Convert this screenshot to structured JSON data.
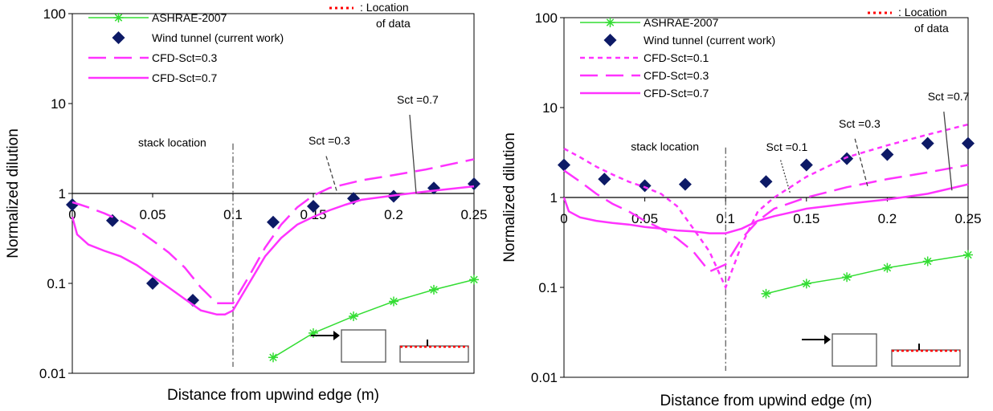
{
  "chart_data": [
    {
      "type": "line",
      "xlabel": "Distance from upwind edge (m)",
      "ylabel": "Normalized dilution",
      "xlim": [
        0,
        0.25
      ],
      "ylim": [
        0.01,
        100
      ],
      "yscale": "log",
      "xticks": [
        "0",
        "0.05",
        "0.1",
        "0.15",
        "0.2",
        "0.25"
      ],
      "yticks": [
        "0.01",
        "0.1",
        "1",
        "10",
        "100"
      ],
      "x_axis_crosses_at_y": 1,
      "stack_location": {
        "x": 0.1,
        "label": "stack location"
      },
      "legend": {
        "placement": "top",
        "entries": [
          {
            "label": "ASHRAE-2007",
            "style": "green-star-line"
          },
          {
            "label": "Wind tunnel (current work)",
            "style": "navy-diamond"
          },
          {
            "label": "CFD-Sct=0.3",
            "style": "magenta-long-dash"
          },
          {
            "label": "CFD-Sct=0.7",
            "style": "magenta-solid"
          }
        ],
        "location_note": ": Location of data"
      },
      "annotations": [
        {
          "text": "Sct =0.3",
          "x": 0.147,
          "y": 3.5
        },
        {
          "text": "Sct =0.7",
          "x": 0.202,
          "y": 10
        }
      ],
      "series": [
        {
          "name": "ASHRAE-2007",
          "color": "#33dd33",
          "marker": "star",
          "x": [
            0.125,
            0.15,
            0.175,
            0.2,
            0.225,
            0.25
          ],
          "y": [
            0.015,
            0.028,
            0.043,
            0.063,
            0.085,
            0.11
          ]
        },
        {
          "name": "Wind tunnel (current work)",
          "color": "#0d1a66",
          "marker": "diamond",
          "x": [
            0,
            0.025,
            0.05,
            0.075,
            0.125,
            0.15,
            0.175,
            0.2,
            0.225,
            0.25
          ],
          "y": [
            0.75,
            0.5,
            0.1,
            0.065,
            0.48,
            0.72,
            0.88,
            0.93,
            1.15,
            1.28
          ]
        },
        {
          "name": "CFD-Sct=0.3",
          "color": "#ff33ff",
          "dash": "long",
          "x": [
            0,
            0.005,
            0.01,
            0.02,
            0.03,
            0.04,
            0.05,
            0.06,
            0.07,
            0.08,
            0.09,
            0.1,
            0.11,
            0.12,
            0.13,
            0.14,
            0.15,
            0.16,
            0.18,
            0.2,
            0.22,
            0.25
          ],
          "y": [
            0.8,
            0.75,
            0.7,
            0.6,
            0.5,
            0.4,
            0.3,
            0.22,
            0.15,
            0.09,
            0.06,
            0.06,
            0.12,
            0.25,
            0.45,
            0.7,
            0.95,
            1.15,
            1.4,
            1.6,
            1.85,
            2.4
          ]
        },
        {
          "name": "CFD-Sct=0.7",
          "color": "#ff33ff",
          "dash": "solid",
          "x": [
            0,
            0.003,
            0.01,
            0.02,
            0.03,
            0.04,
            0.05,
            0.06,
            0.07,
            0.08,
            0.09,
            0.095,
            0.1,
            0.11,
            0.12,
            0.13,
            0.14,
            0.15,
            0.16,
            0.17,
            0.18,
            0.2,
            0.22,
            0.25
          ],
          "y": [
            0.55,
            0.35,
            0.27,
            0.23,
            0.2,
            0.16,
            0.12,
            0.09,
            0.067,
            0.05,
            0.045,
            0.045,
            0.05,
            0.1,
            0.2,
            0.32,
            0.45,
            0.55,
            0.65,
            0.75,
            0.85,
            0.95,
            1.05,
            1.2
          ]
        }
      ]
    },
    {
      "type": "line",
      "xlabel": "Distance from upwind edge (m)",
      "ylabel": "Normalized dilution",
      "xlim": [
        0,
        0.25
      ],
      "ylim": [
        0.01,
        100
      ],
      "yscale": "log",
      "xticks": [
        "0",
        "0.05",
        "0.1",
        "0.15",
        "0.2",
        "0.25"
      ],
      "yticks": [
        "0.01",
        "0.1",
        "1",
        "10",
        "100"
      ],
      "x_axis_crosses_at_y": 1,
      "stack_location": {
        "x": 0.1,
        "label": "stack location"
      },
      "legend": {
        "placement": "top",
        "entries": [
          {
            "label": "ASHRAE-2007",
            "style": "green-star-line"
          },
          {
            "label": "Wind tunnel (current work)",
            "style": "navy-diamond"
          },
          {
            "label": "CFD-Sct=0.1",
            "style": "magenta-short-dash"
          },
          {
            "label": "CFD-Sct=0.3",
            "style": "magenta-long-dash"
          },
          {
            "label": "CFD-Sct=0.7",
            "style": "magenta-solid"
          }
        ],
        "location_note": ": Location of data"
      },
      "annotations": [
        {
          "text": "Sct =0.1",
          "x": 0.125,
          "y": 3.3
        },
        {
          "text": "Sct =0.3",
          "x": 0.17,
          "y": 6
        },
        {
          "text": "Sct =0.7",
          "x": 0.225,
          "y": 12
        }
      ],
      "series": [
        {
          "name": "ASHRAE-2007",
          "color": "#33dd33",
          "marker": "star",
          "x": [
            0.125,
            0.15,
            0.175,
            0.2,
            0.225,
            0.25
          ],
          "y": [
            0.085,
            0.11,
            0.13,
            0.165,
            0.195,
            0.23
          ]
        },
        {
          "name": "Wind tunnel (current work)",
          "color": "#0d1a66",
          "marker": "diamond",
          "x": [
            0,
            0.025,
            0.05,
            0.075,
            0.125,
            0.15,
            0.175,
            0.2,
            0.225,
            0.25
          ],
          "y": [
            2.3,
            1.6,
            1.35,
            1.4,
            1.5,
            2.3,
            2.7,
            3.0,
            4.0,
            4.0
          ]
        },
        {
          "name": "CFD-Sct=0.1",
          "color": "#ff33ff",
          "dash": "short",
          "x": [
            0,
            0.01,
            0.02,
            0.03,
            0.04,
            0.05,
            0.06,
            0.07,
            0.08,
            0.09,
            0.1,
            0.11,
            0.12,
            0.13,
            0.14,
            0.15,
            0.175,
            0.2,
            0.225,
            0.25
          ],
          "y": [
            3.5,
            2.8,
            2.2,
            1.8,
            1.5,
            1.3,
            1.1,
            0.8,
            0.45,
            0.25,
            0.1,
            0.3,
            0.7,
            1.0,
            1.3,
            1.7,
            2.8,
            3.8,
            5.0,
            6.5
          ]
        },
        {
          "name": "CFD-Sct=0.3",
          "color": "#ff33ff",
          "dash": "long",
          "x": [
            0,
            0.01,
            0.02,
            0.03,
            0.04,
            0.05,
            0.06,
            0.07,
            0.08,
            0.09,
            0.1,
            0.11,
            0.12,
            0.13,
            0.15,
            0.175,
            0.2,
            0.225,
            0.25
          ],
          "y": [
            2.0,
            1.5,
            1.1,
            0.85,
            0.7,
            0.55,
            0.45,
            0.35,
            0.25,
            0.15,
            0.18,
            0.35,
            0.55,
            0.75,
            1.0,
            1.3,
            1.6,
            1.9,
            2.3
          ]
        },
        {
          "name": "CFD-Sct=0.7",
          "color": "#ff33ff",
          "dash": "solid",
          "x": [
            0,
            0.003,
            0.01,
            0.02,
            0.03,
            0.04,
            0.05,
            0.06,
            0.07,
            0.08,
            0.09,
            0.1,
            0.11,
            0.12,
            0.13,
            0.14,
            0.15,
            0.175,
            0.2,
            0.225,
            0.25
          ],
          "y": [
            1.0,
            0.7,
            0.6,
            0.55,
            0.52,
            0.5,
            0.47,
            0.45,
            0.43,
            0.42,
            0.4,
            0.4,
            0.45,
            0.55,
            0.62,
            0.68,
            0.75,
            0.85,
            0.95,
            1.1,
            1.4
          ]
        }
      ]
    }
  ]
}
